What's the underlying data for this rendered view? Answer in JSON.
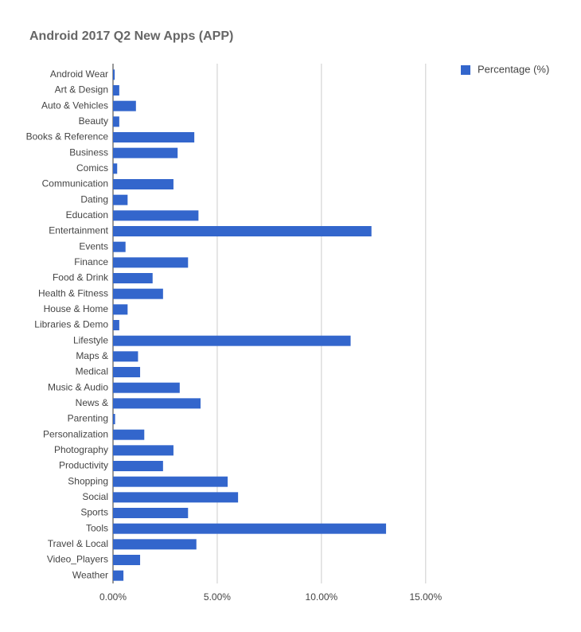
{
  "chart_data": {
    "type": "hbar",
    "title": "Android 2017 Q2 New Apps (APP)",
    "categories": [
      "Android Wear",
      "Art & Design",
      "Auto & Vehicles",
      "Beauty",
      "Books & Reference",
      "Business",
      "Comics",
      "Communication",
      "Dating",
      "Education",
      "Entertainment",
      "Events",
      "Finance",
      "Food & Drink",
      "Health & Fitness",
      "House & Home",
      "Libraries & Demo",
      "Lifestyle",
      "Maps &",
      "Medical",
      "Music & Audio",
      "News &",
      "Parenting",
      "Personalization",
      "Photography",
      "Productivity",
      "Shopping",
      "Social",
      "Sports",
      "Tools",
      "Travel & Local",
      "Video_Players",
      "Weather"
    ],
    "series": [
      {
        "name": "Percentage (%)",
        "color": "#3366cc",
        "values": [
          0.08,
          0.3,
          1.1,
          0.3,
          3.9,
          3.1,
          0.2,
          2.9,
          0.7,
          4.1,
          12.4,
          0.6,
          3.6,
          1.9,
          2.4,
          0.7,
          0.3,
          11.4,
          1.2,
          1.3,
          3.2,
          4.2,
          0.1,
          1.5,
          2.9,
          2.4,
          5.5,
          6.0,
          3.6,
          13.1,
          4.0,
          1.3,
          0.5
        ]
      }
    ],
    "xlim": [
      0,
      16
    ],
    "xticks": [
      {
        "value": 0,
        "label": "0.00%"
      },
      {
        "value": 5,
        "label": "5.00%"
      },
      {
        "value": 10,
        "label": "10.00%"
      },
      {
        "value": 15,
        "label": "15.00%"
      }
    ],
    "grid": true,
    "legend": "top-right"
  }
}
